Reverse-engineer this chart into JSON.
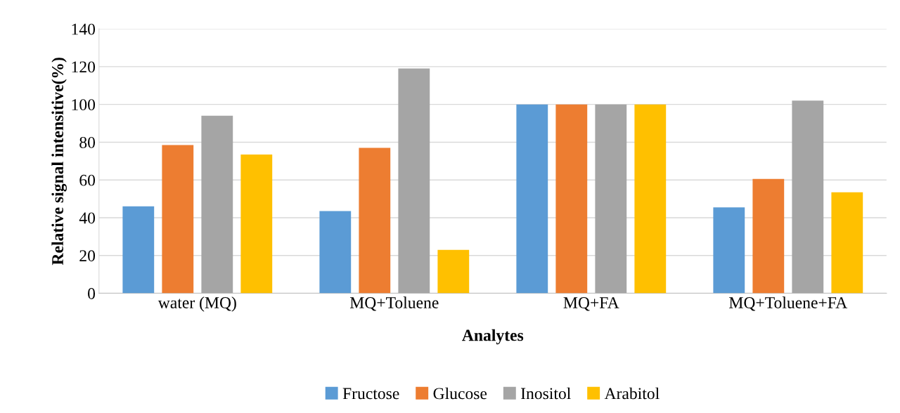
{
  "chart_data": {
    "type": "bar",
    "xlabel": "Analytes",
    "ylabel": "Relative signal intensitive(%)",
    "categories": [
      "water (MQ)",
      "MQ+Toluene",
      "MQ+FA",
      "MQ+Toluene+FA"
    ],
    "series": [
      {
        "name": "Fructose",
        "color": "#5b9bd5",
        "values": [
          46,
          43.5,
          100,
          45.5
        ]
      },
      {
        "name": "Glucose",
        "color": "#ed7d31",
        "values": [
          78.5,
          77,
          100,
          60.5
        ]
      },
      {
        "name": "Inositol",
        "color": "#a5a5a5",
        "values": [
          94,
          119,
          100,
          102
        ]
      },
      {
        "name": "Arabitol",
        "color": "#ffc000",
        "values": [
          73.5,
          23,
          100,
          53.5
        ]
      }
    ],
    "ylim": [
      0,
      140
    ],
    "yticks": [
      0,
      20,
      40,
      60,
      80,
      100,
      120,
      140
    ],
    "grid": "y",
    "legend": "bottom"
  }
}
